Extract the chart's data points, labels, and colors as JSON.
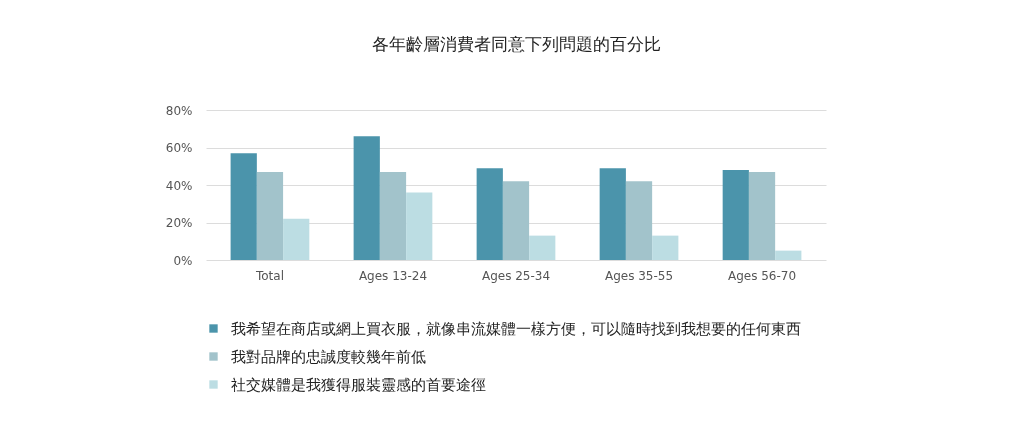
{
  "chart_data": {
    "type": "bar",
    "title": "各年齡層消費者同意下列問題的百分比",
    "categories": [
      "Total",
      "Ages 13-24",
      "Ages 25-34",
      "Ages 35-55",
      "Ages 56-70"
    ],
    "series": [
      {
        "name": "我希望在商店或網上買衣服，就像串流媒體一樣方便，可以隨時找到我想要的任何東西",
        "color": "#4b94ab",
        "values": [
          57,
          66,
          49,
          49,
          48
        ]
      },
      {
        "name": "我對品牌的忠誠度較幾年前低",
        "color": "#a2c3cb",
        "values": [
          47,
          47,
          42,
          42,
          47
        ]
      },
      {
        "name": "社交媒體是我獲得服裝靈感的首要途徑",
        "color": "#bcdde3",
        "values": [
          22,
          36,
          13,
          13,
          5
        ]
      }
    ],
    "ylim": [
      0,
      80
    ],
    "yticks": [
      {
        "value": 0,
        "label": "0%"
      },
      {
        "value": 20,
        "label": "20%"
      },
      {
        "value": 40,
        "label": "40%"
      },
      {
        "value": 60,
        "label": "60%"
      },
      {
        "value": 80,
        "label": "80%"
      }
    ],
    "grid": "y",
    "legend": "bottom"
  }
}
